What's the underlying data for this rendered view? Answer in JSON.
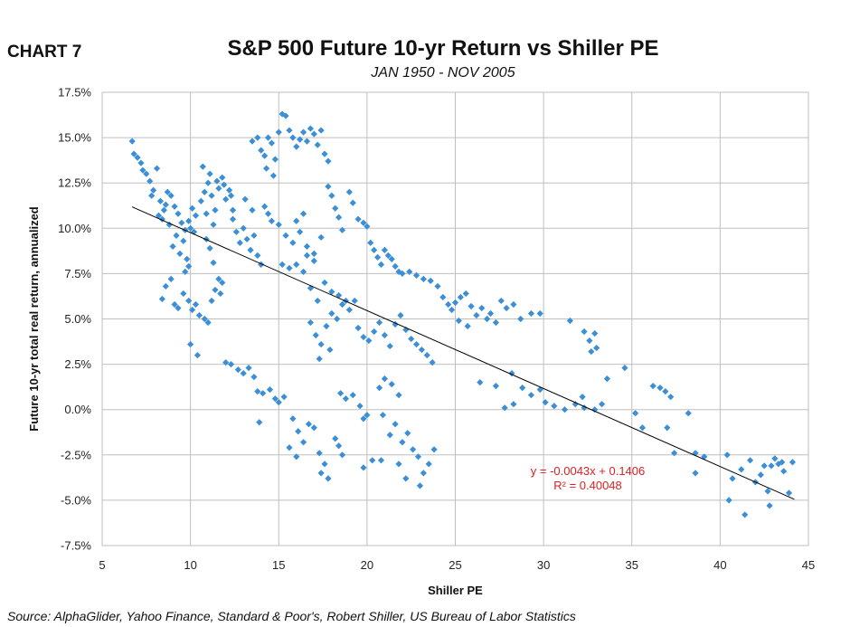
{
  "header": {
    "chart_label": "CHART 7",
    "title": "S&P 500 Future 10-yr Return vs Shiller PE",
    "subtitle": "JAN 1950 - NOV 2005"
  },
  "footer": {
    "source": "Source: AlphaGlider, Yahoo Finance, Standard & Poor's, Robert Shiller, US Bureau of Labor Statistics"
  },
  "colors": {
    "points": "#3a8fd6",
    "trendline": "#000000",
    "equation": "#e02020",
    "grid": "#bfbfbf"
  },
  "chart_data": {
    "type": "scatter",
    "title": "S&P 500 Future 10-yr Return vs Shiller PE",
    "subtitle": "JAN 1950 - NOV 2005",
    "xlabel": "Shiller PE",
    "ylabel": "Future 10-yr total real return, annualized",
    "xlim": [
      5,
      45
    ],
    "ylim": [
      -0.075,
      0.175
    ],
    "x_ticks": [
      5,
      10,
      15,
      20,
      25,
      30,
      35,
      40,
      45
    ],
    "x_tick_labels": [
      "5",
      "10",
      "15",
      "20",
      "25",
      "30",
      "35",
      "40",
      "45"
    ],
    "y_ticks": [
      -0.075,
      -0.05,
      -0.025,
      0,
      0.025,
      0.05,
      0.075,
      0.1,
      0.125,
      0.15,
      0.175
    ],
    "y_tick_labels": [
      "-7.5%",
      "-5.0%",
      "-2.5%",
      "0.0%",
      "2.5%",
      "5.0%",
      "7.5%",
      "10.0%",
      "12.5%",
      "15.0%",
      "17.5%"
    ],
    "grid": true,
    "marker": "diamond",
    "trendline": {
      "slope": -0.0043,
      "intercept": 0.1406,
      "x_range": [
        6.7,
        44.2
      ],
      "equation_label": "y = -0.0043x + 0.1406",
      "r2_label": "R² = 0.40048"
    },
    "points": [
      [
        6.7,
        0.148
      ],
      [
        6.8,
        0.141
      ],
      [
        7.0,
        0.139
      ],
      [
        7.2,
        0.136
      ],
      [
        7.3,
        0.132
      ],
      [
        7.5,
        0.13
      ],
      [
        7.7,
        0.126
      ],
      [
        7.9,
        0.121
      ],
      [
        8.1,
        0.133
      ],
      [
        8.3,
        0.115
      ],
      [
        8.5,
        0.11
      ],
      [
        8.7,
        0.12
      ],
      [
        8.9,
        0.118
      ],
      [
        9.1,
        0.112
      ],
      [
        9.3,
        0.108
      ],
      [
        9.5,
        0.103
      ],
      [
        9.7,
        0.099
      ],
      [
        9.9,
        0.104
      ],
      [
        10.1,
        0.111
      ],
      [
        10.3,
        0.107
      ],
      [
        8.4,
        0.105
      ],
      [
        8.8,
        0.102
      ],
      [
        9.2,
        0.096
      ],
      [
        9.6,
        0.093
      ],
      [
        10.0,
        0.1
      ],
      [
        10.2,
        0.098
      ],
      [
        9.0,
        0.09
      ],
      [
        9.4,
        0.086
      ],
      [
        9.8,
        0.083
      ],
      [
        8.6,
        0.113
      ],
      [
        8.2,
        0.107
      ],
      [
        7.8,
        0.118
      ],
      [
        8.4,
        0.061
      ],
      [
        8.6,
        0.068
      ],
      [
        8.9,
        0.072
      ],
      [
        9.1,
        0.058
      ],
      [
        9.3,
        0.056
      ],
      [
        9.6,
        0.064
      ],
      [
        9.9,
        0.06
      ],
      [
        10.1,
        0.055
      ],
      [
        10.3,
        0.058
      ],
      [
        10.5,
        0.052
      ],
      [
        9.7,
        0.076
      ],
      [
        9.9,
        0.079
      ],
      [
        10.0,
        0.036
      ],
      [
        10.4,
        0.03
      ],
      [
        10.6,
        0.115
      ],
      [
        10.8,
        0.12
      ],
      [
        11.0,
        0.125
      ],
      [
        11.2,
        0.118
      ],
      [
        11.4,
        0.11
      ],
      [
        11.6,
        0.122
      ],
      [
        11.8,
        0.128
      ],
      [
        12.0,
        0.116
      ],
      [
        12.2,
        0.121
      ],
      [
        12.4,
        0.11
      ],
      [
        11.1,
        0.13
      ],
      [
        11.5,
        0.126
      ],
      [
        11.9,
        0.124
      ],
      [
        12.3,
        0.118
      ],
      [
        10.9,
        0.108
      ],
      [
        11.3,
        0.102
      ],
      [
        10.7,
        0.134
      ],
      [
        10.8,
        0.05
      ],
      [
        11.0,
        0.048
      ],
      [
        11.2,
        0.06
      ],
      [
        11.4,
        0.066
      ],
      [
        11.6,
        0.072
      ],
      [
        11.8,
        0.07
      ],
      [
        11.3,
        0.081
      ],
      [
        11.7,
        0.064
      ],
      [
        11.1,
        0.089
      ],
      [
        10.9,
        0.094
      ],
      [
        12.0,
        0.026
      ],
      [
        12.3,
        0.025
      ],
      [
        12.7,
        0.022
      ],
      [
        13.0,
        0.02
      ],
      [
        13.3,
        0.023
      ],
      [
        13.6,
        0.018
      ],
      [
        13.8,
        0.01
      ],
      [
        14.1,
        0.009
      ],
      [
        14.5,
        0.011
      ],
      [
        14.8,
        0.006
      ],
      [
        15.0,
        0.004
      ],
      [
        15.3,
        0.007
      ],
      [
        13.9,
        -0.007
      ],
      [
        12.4,
        0.105
      ],
      [
        12.6,
        0.098
      ],
      [
        12.8,
        0.092
      ],
      [
        13.0,
        0.1
      ],
      [
        13.2,
        0.094
      ],
      [
        13.4,
        0.088
      ],
      [
        13.6,
        0.096
      ],
      [
        13.8,
        0.085
      ],
      [
        14.0,
        0.08
      ],
      [
        14.2,
        0.112
      ],
      [
        14.4,
        0.108
      ],
      [
        14.6,
        0.104
      ],
      [
        13.1,
        0.116
      ],
      [
        13.5,
        0.11
      ],
      [
        13.5,
        0.148
      ],
      [
        13.8,
        0.15
      ],
      [
        14.0,
        0.143
      ],
      [
        14.2,
        0.14
      ],
      [
        14.4,
        0.15
      ],
      [
        14.6,
        0.147
      ],
      [
        14.8,
        0.138
      ],
      [
        15.0,
        0.153
      ],
      [
        15.2,
        0.163
      ],
      [
        15.4,
        0.162
      ],
      [
        15.6,
        0.154
      ],
      [
        15.8,
        0.15
      ],
      [
        16.0,
        0.145
      ],
      [
        16.2,
        0.149
      ],
      [
        16.4,
        0.153
      ],
      [
        16.6,
        0.148
      ],
      [
        16.8,
        0.155
      ],
      [
        17.0,
        0.152
      ],
      [
        17.2,
        0.146
      ],
      [
        17.4,
        0.154
      ],
      [
        17.6,
        0.141
      ],
      [
        17.8,
        0.137
      ],
      [
        14.3,
        0.133
      ],
      [
        14.7,
        0.129
      ],
      [
        15.0,
        0.102
      ],
      [
        15.4,
        0.096
      ],
      [
        15.8,
        0.092
      ],
      [
        16.2,
        0.098
      ],
      [
        16.6,
        0.09
      ],
      [
        17.0,
        0.086
      ],
      [
        17.4,
        0.095
      ],
      [
        17.8,
        0.123
      ],
      [
        18.0,
        0.118
      ],
      [
        18.2,
        0.111
      ],
      [
        18.4,
        0.106
      ],
      [
        18.6,
        0.099
      ],
      [
        16.0,
        0.104
      ],
      [
        16.4,
        0.108
      ],
      [
        15.2,
        0.08
      ],
      [
        15.6,
        0.078
      ],
      [
        16.0,
        0.08
      ],
      [
        16.4,
        0.076
      ],
      [
        16.8,
        0.067
      ],
      [
        17.2,
        0.06
      ],
      [
        17.6,
        0.07
      ],
      [
        18.0,
        0.065
      ],
      [
        18.4,
        0.063
      ],
      [
        18.8,
        0.06
      ],
      [
        16.6,
        0.085
      ],
      [
        17.0,
        0.082
      ],
      [
        16.8,
        0.048
      ],
      [
        17.1,
        0.041
      ],
      [
        17.4,
        0.036
      ],
      [
        17.7,
        0.046
      ],
      [
        18.0,
        0.053
      ],
      [
        18.3,
        0.05
      ],
      [
        18.6,
        0.058
      ],
      [
        19.0,
        0.055
      ],
      [
        19.3,
        0.06
      ],
      [
        17.3,
        0.028
      ],
      [
        17.9,
        0.033
      ],
      [
        15.8,
        -0.005
      ],
      [
        16.1,
        -0.012
      ],
      [
        16.4,
        -0.018
      ],
      [
        16.7,
        -0.008
      ],
      [
        17.0,
        -0.01
      ],
      [
        17.3,
        -0.024
      ],
      [
        17.6,
        -0.03
      ],
      [
        17.8,
        -0.038
      ],
      [
        18.2,
        -0.016
      ],
      [
        18.4,
        -0.02
      ],
      [
        18.6,
        -0.025
      ],
      [
        15.6,
        -0.021
      ],
      [
        16.0,
        -0.026
      ],
      [
        17.4,
        -0.035
      ],
      [
        18.5,
        0.009
      ],
      [
        18.8,
        0.006
      ],
      [
        19.2,
        0.008
      ],
      [
        19.6,
        0.002
      ],
      [
        20.0,
        -0.003
      ],
      [
        19.8,
        -0.005
      ],
      [
        20.3,
        -0.028
      ],
      [
        19.8,
        -0.032
      ],
      [
        19.0,
        0.12
      ],
      [
        19.2,
        0.114
      ],
      [
        19.5,
        0.105
      ],
      [
        19.8,
        0.103
      ],
      [
        20.0,
        0.101
      ],
      [
        20.2,
        0.092
      ],
      [
        20.4,
        0.088
      ],
      [
        20.6,
        0.084
      ],
      [
        20.8,
        0.08
      ],
      [
        21.0,
        0.088
      ],
      [
        21.2,
        0.085
      ],
      [
        21.4,
        0.083
      ],
      [
        21.6,
        0.079
      ],
      [
        21.8,
        0.076
      ],
      [
        22.0,
        0.075
      ],
      [
        22.4,
        0.076
      ],
      [
        22.8,
        0.074
      ],
      [
        23.2,
        0.072
      ],
      [
        23.6,
        0.071
      ],
      [
        24.0,
        0.068
      ],
      [
        24.3,
        0.062
      ],
      [
        24.6,
        0.058
      ],
      [
        19.5,
        0.045
      ],
      [
        19.8,
        0.04
      ],
      [
        20.1,
        0.038
      ],
      [
        20.4,
        0.043
      ],
      [
        20.7,
        0.048
      ],
      [
        21.0,
        0.041
      ],
      [
        21.3,
        0.035
      ],
      [
        21.6,
        0.047
      ],
      [
        21.9,
        0.052
      ],
      [
        22.2,
        0.044
      ],
      [
        22.5,
        0.039
      ],
      [
        22.8,
        0.036
      ],
      [
        23.1,
        0.033
      ],
      [
        23.4,
        0.03
      ],
      [
        23.7,
        0.026
      ],
      [
        20.7,
        0.012
      ],
      [
        21.0,
        0.017
      ],
      [
        21.4,
        0.014
      ],
      [
        21.8,
        0.008
      ],
      [
        20.9,
        -0.003
      ],
      [
        21.3,
        -0.014
      ],
      [
        21.6,
        -0.008
      ],
      [
        22.0,
        -0.018
      ],
      [
        22.3,
        -0.013
      ],
      [
        22.6,
        -0.022
      ],
      [
        22.9,
        -0.026
      ],
      [
        23.2,
        -0.035
      ],
      [
        23.5,
        -0.03
      ],
      [
        23.8,
        -0.022
      ],
      [
        23.0,
        -0.042
      ],
      [
        21.8,
        -0.03
      ],
      [
        22.2,
        -0.038
      ],
      [
        20.8,
        -0.028
      ],
      [
        24.8,
        0.055
      ],
      [
        25.0,
        0.059
      ],
      [
        25.3,
        0.062
      ],
      [
        25.6,
        0.064
      ],
      [
        25.9,
        0.057
      ],
      [
        26.2,
        0.052
      ],
      [
        26.5,
        0.056
      ],
      [
        26.8,
        0.05
      ],
      [
        27.0,
        0.053
      ],
      [
        27.3,
        0.048
      ],
      [
        27.6,
        0.06
      ],
      [
        27.9,
        0.056
      ],
      [
        28.3,
        0.058
      ],
      [
        28.7,
        0.05
      ],
      [
        29.3,
        0.053
      ],
      [
        29.8,
        0.053
      ],
      [
        25.2,
        0.049
      ],
      [
        25.7,
        0.046
      ],
      [
        26.4,
        0.015
      ],
      [
        27.8,
        0.001
      ],
      [
        28.3,
        0.003
      ],
      [
        28.8,
        0.012
      ],
      [
        29.3,
        0.008
      ],
      [
        29.8,
        0.011
      ],
      [
        30.1,
        0.004
      ],
      [
        30.6,
        0.002
      ],
      [
        31.2,
        0.0
      ],
      [
        31.8,
        0.003
      ],
      [
        32.3,
        0.001
      ],
      [
        32.9,
        0.0
      ],
      [
        33.3,
        0.003
      ],
      [
        32.2,
        0.007
      ],
      [
        27.3,
        0.013
      ],
      [
        28.2,
        0.02
      ],
      [
        31.5,
        0.049
      ],
      [
        32.3,
        0.043
      ],
      [
        32.6,
        0.038
      ],
      [
        32.9,
        0.042
      ],
      [
        32.7,
        0.032
      ],
      [
        33.0,
        0.034
      ],
      [
        33.6,
        0.017
      ],
      [
        34.6,
        0.023
      ],
      [
        35.2,
        -0.002
      ],
      [
        35.6,
        -0.01
      ],
      [
        36.2,
        0.013
      ],
      [
        36.6,
        0.012
      ],
      [
        36.9,
        0.01
      ],
      [
        37.2,
        0.007
      ],
      [
        37.0,
        -0.01
      ],
      [
        37.4,
        -0.024
      ],
      [
        38.2,
        -0.002
      ],
      [
        38.6,
        -0.024
      ],
      [
        38.6,
        -0.035
      ],
      [
        39.1,
        -0.026
      ],
      [
        40.4,
        -0.025
      ],
      [
        40.7,
        -0.038
      ],
      [
        40.5,
        -0.05
      ],
      [
        41.2,
        -0.033
      ],
      [
        41.4,
        -0.058
      ],
      [
        41.7,
        -0.028
      ],
      [
        42.0,
        -0.04
      ],
      [
        42.3,
        -0.036
      ],
      [
        42.5,
        -0.031
      ],
      [
        42.7,
        -0.045
      ],
      [
        42.9,
        -0.031
      ],
      [
        43.1,
        -0.027
      ],
      [
        43.3,
        -0.03
      ],
      [
        43.6,
        -0.034
      ],
      [
        43.9,
        -0.046
      ],
      [
        44.1,
        -0.029
      ],
      [
        42.8,
        -0.053
      ],
      [
        43.5,
        -0.029
      ]
    ]
  }
}
